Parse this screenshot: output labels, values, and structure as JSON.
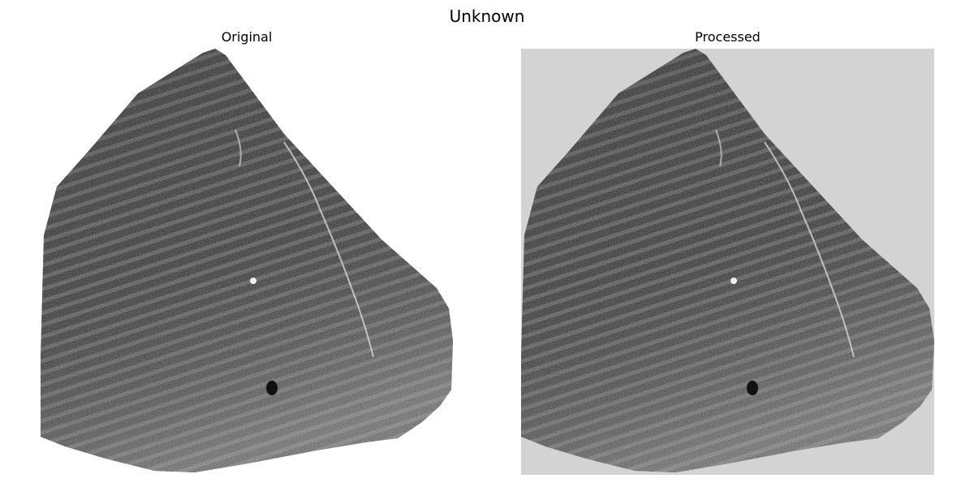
{
  "figure": {
    "title": "Unknown"
  },
  "panels": [
    {
      "title": "Original",
      "background": "#ffffff"
    },
    {
      "title": "Processed",
      "background": "#d3d3d3"
    }
  ],
  "image": {
    "subject": "fingerprint-impression",
    "tone": "grayscale"
  }
}
